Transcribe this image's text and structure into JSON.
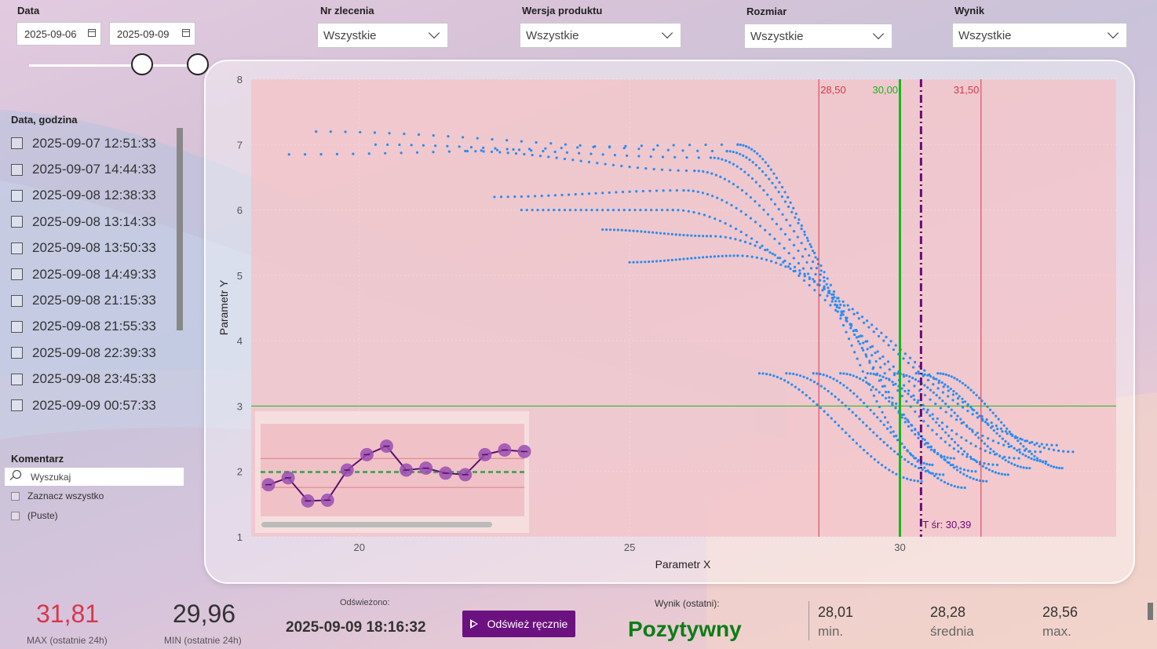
{
  "filters": {
    "date": {
      "label": "Data",
      "from": "2025-09-06",
      "to": "2025-09-09"
    },
    "order": {
      "label": "Nr zlecenia",
      "value": "Wszystkie"
    },
    "version": {
      "label": "Wersja produktu",
      "value": "Wszystkie"
    },
    "size": {
      "label": "Rozmiar",
      "value": "Wszystkie"
    },
    "result": {
      "label": "Wynik",
      "value": "Wszystkie"
    }
  },
  "datetime_list": {
    "title": "Data, godzina",
    "items": [
      "2025-09-07 12:51:33",
      "2025-09-07 14:44:33",
      "2025-09-08 12:38:33",
      "2025-09-08 13:14:33",
      "2025-09-08 13:50:33",
      "2025-09-08 14:49:33",
      "2025-09-08 21:15:33",
      "2025-09-08 21:55:33",
      "2025-09-08 22:39:33",
      "2025-09-08 23:45:33",
      "2025-09-09 00:57:33"
    ]
  },
  "comment": {
    "title": "Komentarz",
    "search_placeholder": "Wyszukaj",
    "select_all": "Zaznacz wszystko",
    "empty": "(Puste)"
  },
  "chart_data": {
    "type": "scatter",
    "xlabel": "Parametr X",
    "ylabel": "Parametr Y",
    "xlim": [
      18,
      34
    ],
    "ylim": [
      1,
      8
    ],
    "xticks": [
      "20",
      "25",
      "30"
    ],
    "yticks": [
      "1",
      "2",
      "3",
      "4",
      "5",
      "6",
      "7",
      "8"
    ],
    "ref_lines": {
      "lower": {
        "x": 28.5,
        "label": "28,50",
        "color": "#d33a4a"
      },
      "target": {
        "x": 30.0,
        "label": "30,00",
        "color": "#13b81f"
      },
      "upper": {
        "x": 31.5,
        "label": "31,50",
        "color": "#d33a4a"
      },
      "mean": {
        "x": 30.39,
        "label": "T śr: 30,39",
        "color": "#6a0a78"
      },
      "horizontal": {
        "y": 3.0,
        "color": "#13b81f"
      }
    },
    "point_color": "#2b8cf0",
    "curves": [
      {
        "start": [
          18.7,
          6.85
        ],
        "knee": [
          27.0,
          7.0
        ],
        "end": [
          30.6,
          2.1
        ]
      },
      {
        "start": [
          19.2,
          7.2
        ],
        "knee": [
          26.8,
          6.9
        ],
        "end": [
          31.0,
          2.2
        ]
      },
      {
        "start": [
          20.3,
          7.0
        ],
        "knee": [
          26.5,
          6.8
        ],
        "end": [
          31.4,
          2.0
        ]
      },
      {
        "start": [
          22.0,
          6.9
        ],
        "knee": [
          26.2,
          6.6
        ],
        "end": [
          31.8,
          2.1
        ]
      },
      {
        "start": [
          22.5,
          6.2
        ],
        "knee": [
          26.0,
          6.3
        ],
        "end": [
          32.2,
          2.2
        ]
      },
      {
        "start": [
          23.0,
          6.0
        ],
        "knee": [
          25.8,
          6.0
        ],
        "end": [
          32.6,
          2.3
        ]
      },
      {
        "start": [
          24.5,
          5.7
        ],
        "knee": [
          26.5,
          5.6
        ],
        "end": [
          32.9,
          2.4
        ]
      },
      {
        "start": [
          25.0,
          5.2
        ],
        "knee": [
          27.0,
          5.3
        ],
        "end": [
          33.2,
          2.3
        ]
      }
    ],
    "inset": {
      "type": "line",
      "values": [
        1.62,
        1.8,
        1.2,
        1.22,
        2.0,
        2.4,
        2.62,
        2.0,
        2.05,
        1.92,
        1.88,
        2.4,
        2.52,
        2.48
      ],
      "mean": 1.95,
      "upper": 2.3,
      "lower": 1.55,
      "ylim": [
        0.8,
        3.2
      ]
    }
  },
  "kpis": {
    "max_value": "31,81",
    "max_caption": "MAX (ostatnie 24h)",
    "min_value": "29,96",
    "min_caption": "MIN (ostatnie 24h)",
    "refreshed_label": "Odświeżono:",
    "refreshed_value": "2025-09-09 18:16:32",
    "refresh_button": "Odśwież ręcznie",
    "result_label": "Wynik (ostatni):",
    "result_value": "Pozytywny",
    "stats": [
      {
        "value": "28,01",
        "caption": "min."
      },
      {
        "value": "28,28",
        "caption": "średnia"
      },
      {
        "value": "28,56",
        "caption": "max."
      }
    ]
  },
  "colors": {
    "max": "#d9364a",
    "result": "#0a7d16",
    "button": "#6b1280",
    "plot_bg": "#f2c3c8"
  }
}
